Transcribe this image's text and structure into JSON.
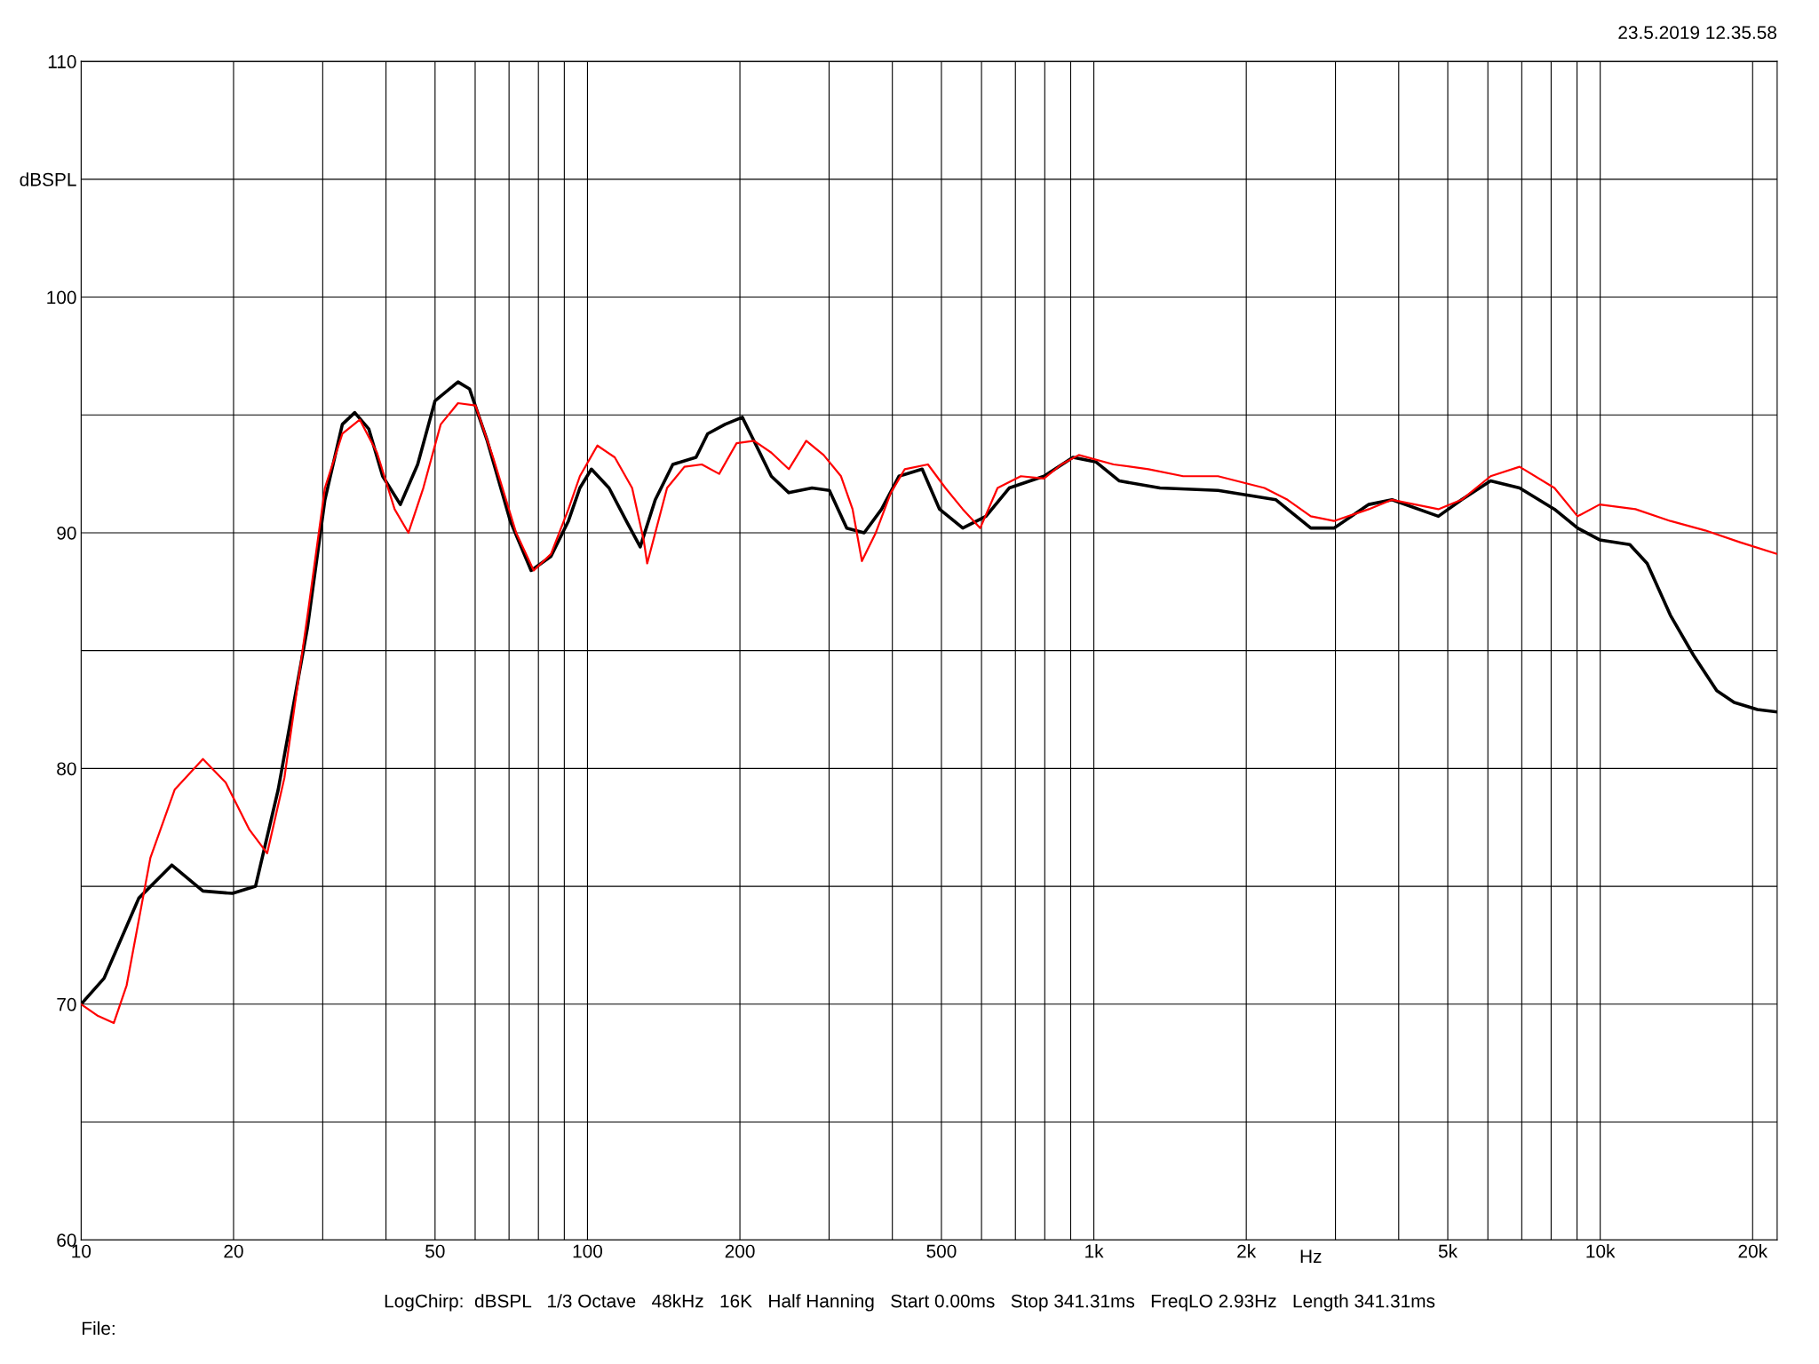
{
  "chart_data": {
    "type": "line",
    "log": "x",
    "grid": true,
    "legend": false,
    "marker": "none",
    "line_style": "solid",
    "xlabel": "Hz",
    "annotations": [
      "23.5.2019 12.35.58",
      "LogChirp:  dBSPL   1/3 Octave   48kHz   16K   Half Hanning   Start 0.00ms   Stop 341.31ms   FreqLO 2.93Hz   Length 341.31ms",
      "File:"
    ],
    "xlim": [
      10,
      22360
    ],
    "ylim": [
      60,
      110
    ],
    "xticks": [
      10,
      {
        "value": 20,
        "label": "20"
      },
      {
        "value": 30,
        "label": null
      },
      {
        "value": 40,
        "label": null
      },
      {
        "value": 50,
        "label": "50"
      },
      {
        "value": 60,
        "label": null
      },
      {
        "value": 70,
        "label": null
      },
      {
        "value": 80,
        "label": null
      },
      {
        "value": 90,
        "label": null
      },
      100,
      200,
      {
        "value": 300,
        "label": null
      },
      {
        "value": 400,
        "label": null
      },
      500,
      {
        "value": 600,
        "label": null
      },
      {
        "value": 700,
        "label": null
      },
      {
        "value": 800,
        "label": null
      },
      {
        "value": 900,
        "label": null
      },
      {
        "value": 1000,
        "label": "1k"
      },
      {
        "value": 2000,
        "label": "2k"
      },
      {
        "value": 3000,
        "label": null
      },
      {
        "value": 4000,
        "label": null
      },
      {
        "value": 5000,
        "label": "5k"
      },
      {
        "value": 6000,
        "label": null
      },
      {
        "value": 7000,
        "label": null
      },
      {
        "value": 8000,
        "label": null
      },
      {
        "value": 9000,
        "label": null
      },
      {
        "value": 10000,
        "label": "10k"
      },
      {
        "value": 20000,
        "label": "20k"
      }
    ],
    "yticks": [
      60,
      {
        "value": 65,
        "label": null
      },
      70,
      {
        "value": 75,
        "label": null
      },
      80,
      {
        "value": 85,
        "label": null
      },
      90,
      {
        "value": 95,
        "label": null
      },
      100,
      {
        "value": 105,
        "label": "dBSPL"
      },
      110
    ],
    "series": [
      {
        "color": "#000000",
        "x": [
          10,
          11.1,
          13.0,
          15.1,
          17.4,
          19.9,
          22.1,
          24.5,
          28.0,
          30.3,
          32.8,
          34.7,
          37.0,
          39.4,
          42.7,
          46.2,
          50.0,
          55.5,
          58.5,
          63.4,
          70.4,
          77.4,
          84.7,
          91.7,
          96.6,
          101.8,
          110.3,
          119.3,
          127.1,
          136.1,
          147.4,
          163.8,
          172.7,
          186.9,
          202.2,
          213.2,
          230.7,
          249.8,
          277.6,
          300.4,
          325.1,
          351.9,
          380.9,
          412.2,
          458.1,
          495.8,
          551.0,
          612.4,
          680.5,
          797.2,
          909.5,
          1010.6,
          1123,
          1351,
          1759,
          2289,
          2682,
          2980,
          3491,
          3880,
          4791,
          5324,
          6075,
          6931,
          8121,
          9022,
          9975,
          11440,
          12380,
          13760,
          15290,
          16990,
          18390,
          20440,
          22360
        ],
        "values": [
          70.0,
          71.1,
          74.5,
          75.9,
          74.8,
          74.7,
          75.0,
          79.1,
          86.0,
          91.4,
          94.6,
          95.1,
          94.4,
          92.4,
          91.2,
          92.9,
          95.6,
          96.4,
          96.1,
          93.9,
          90.5,
          88.4,
          89.0,
          90.5,
          91.9,
          92.7,
          91.9,
          90.5,
          89.4,
          91.4,
          92.9,
          93.2,
          94.2,
          94.6,
          94.9,
          93.9,
          92.4,
          91.7,
          91.9,
          91.8,
          90.2,
          90.0,
          91.0,
          92.4,
          92.7,
          91.0,
          90.2,
          90.7,
          91.9,
          92.4,
          93.2,
          93.0,
          92.2,
          91.9,
          91.8,
          91.4,
          90.2,
          90.2,
          91.2,
          91.4,
          90.7,
          91.4,
          92.2,
          91.9,
          91.0,
          90.2,
          89.7,
          89.5,
          88.7,
          86.5,
          84.8,
          83.3,
          82.8,
          82.5,
          82.4
        ]
      },
      {
        "color": "#ff0000",
        "x": [
          10,
          10.8,
          11.6,
          12.3,
          13.7,
          15.3,
          17.4,
          19.3,
          21.5,
          23.3,
          25.2,
          28.0,
          30.3,
          32.8,
          35.5,
          38.4,
          41.6,
          44.3,
          47.4,
          51.3,
          55.5,
          60.1,
          65.1,
          72.3,
          78.3,
          84.7,
          91.7,
          96.6,
          104.6,
          113.2,
          122.5,
          129.1,
          131.2,
          136.1,
          143.6,
          155.4,
          168.2,
          182.0,
          197.0,
          213.2,
          230.7,
          249.8,
          270.4,
          292.6,
          316.7,
          333.8,
          348.3,
          371.0,
          397.3,
          423.3,
          470.3,
          509.1,
          551.0,
          596.5,
          645.5,
          717.4,
          797.2,
          862.9,
          933.8,
          1094,
          1282,
          1501,
          1759,
          2172,
          2413,
          2682,
          2980,
          3491,
          3880,
          4791,
          5324,
          6075,
          6931,
          8121,
          9022,
          9975,
          11740,
          13760,
          16120,
          18880,
          22360
        ],
        "values": [
          70.0,
          69.5,
          69.2,
          70.8,
          76.2,
          79.1,
          80.4,
          79.4,
          77.4,
          76.4,
          79.6,
          86.5,
          91.9,
          94.2,
          94.8,
          93.4,
          91.0,
          90.0,
          91.9,
          94.6,
          95.5,
          95.4,
          93.2,
          90.0,
          88.4,
          89.1,
          91.0,
          92.4,
          93.7,
          93.2,
          91.9,
          89.7,
          88.7,
          90.0,
          91.9,
          92.8,
          92.9,
          92.5,
          93.8,
          93.9,
          93.4,
          92.7,
          93.9,
          93.3,
          92.4,
          91.0,
          88.8,
          90.0,
          91.7,
          92.7,
          92.9,
          91.9,
          91.0,
          90.2,
          91.9,
          92.4,
          92.3,
          92.9,
          93.3,
          92.9,
          92.7,
          92.4,
          92.4,
          91.9,
          91.4,
          90.7,
          90.5,
          91.0,
          91.4,
          91.0,
          91.4,
          92.4,
          92.8,
          91.9,
          90.7,
          91.2,
          91.0,
          90.5,
          90.1,
          89.6,
          89.1
        ]
      }
    ]
  }
}
